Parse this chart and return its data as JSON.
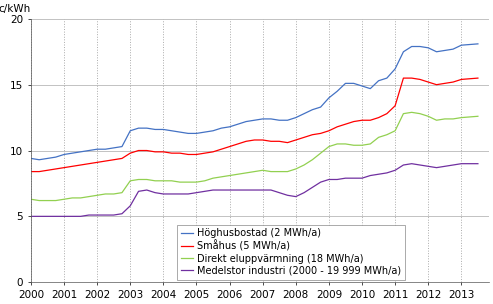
{
  "title": "",
  "ylabel": "c/kWh",
  "ylim": [
    0,
    20
  ],
  "yticks": [
    0,
    5,
    10,
    15,
    20
  ],
  "xlim": [
    2000,
    2013.83
  ],
  "xticks": [
    2000,
    2001,
    2002,
    2003,
    2004,
    2005,
    2006,
    2007,
    2008,
    2009,
    2010,
    2011,
    2012,
    2013
  ],
  "grid_color": "#aaaaaa",
  "background_color": "#ffffff",
  "series": {
    "Höghusbostad (2 MWh/a)": {
      "color": "#4472C4",
      "data": [
        [
          2000.0,
          9.4
        ],
        [
          2000.25,
          9.3
        ],
        [
          2000.5,
          9.4
        ],
        [
          2000.75,
          9.5
        ],
        [
          2001.0,
          9.7
        ],
        [
          2001.25,
          9.8
        ],
        [
          2001.5,
          9.9
        ],
        [
          2001.75,
          10.0
        ],
        [
          2002.0,
          10.1
        ],
        [
          2002.25,
          10.1
        ],
        [
          2002.5,
          10.2
        ],
        [
          2002.75,
          10.3
        ],
        [
          2003.0,
          11.5
        ],
        [
          2003.25,
          11.7
        ],
        [
          2003.5,
          11.7
        ],
        [
          2003.75,
          11.6
        ],
        [
          2004.0,
          11.6
        ],
        [
          2004.25,
          11.5
        ],
        [
          2004.5,
          11.4
        ],
        [
          2004.75,
          11.3
        ],
        [
          2005.0,
          11.3
        ],
        [
          2005.25,
          11.4
        ],
        [
          2005.5,
          11.5
        ],
        [
          2005.75,
          11.7
        ],
        [
          2006.0,
          11.8
        ],
        [
          2006.25,
          12.0
        ],
        [
          2006.5,
          12.2
        ],
        [
          2006.75,
          12.3
        ],
        [
          2007.0,
          12.4
        ],
        [
          2007.25,
          12.4
        ],
        [
          2007.5,
          12.3
        ],
        [
          2007.75,
          12.3
        ],
        [
          2008.0,
          12.5
        ],
        [
          2008.25,
          12.8
        ],
        [
          2008.5,
          13.1
        ],
        [
          2008.75,
          13.3
        ],
        [
          2009.0,
          14.0
        ],
        [
          2009.25,
          14.5
        ],
        [
          2009.5,
          15.1
        ],
        [
          2009.75,
          15.1
        ],
        [
          2010.0,
          14.9
        ],
        [
          2010.25,
          14.7
        ],
        [
          2010.5,
          15.3
        ],
        [
          2010.75,
          15.5
        ],
        [
          2011.0,
          16.2
        ],
        [
          2011.25,
          17.5
        ],
        [
          2011.5,
          17.9
        ],
        [
          2011.75,
          17.9
        ],
        [
          2012.0,
          17.8
        ],
        [
          2012.25,
          17.5
        ],
        [
          2012.5,
          17.6
        ],
        [
          2012.75,
          17.7
        ],
        [
          2013.0,
          18.0
        ],
        [
          2013.5,
          18.1
        ]
      ]
    },
    "Småhus (5 MWh/a)": {
      "color": "#FF0000",
      "data": [
        [
          2000.0,
          8.4
        ],
        [
          2000.25,
          8.4
        ],
        [
          2000.5,
          8.5
        ],
        [
          2000.75,
          8.6
        ],
        [
          2001.0,
          8.7
        ],
        [
          2001.25,
          8.8
        ],
        [
          2001.5,
          8.9
        ],
        [
          2001.75,
          9.0
        ],
        [
          2002.0,
          9.1
        ],
        [
          2002.25,
          9.2
        ],
        [
          2002.5,
          9.3
        ],
        [
          2002.75,
          9.4
        ],
        [
          2003.0,
          9.8
        ],
        [
          2003.25,
          10.0
        ],
        [
          2003.5,
          10.0
        ],
        [
          2003.75,
          9.9
        ],
        [
          2004.0,
          9.9
        ],
        [
          2004.25,
          9.8
        ],
        [
          2004.5,
          9.8
        ],
        [
          2004.75,
          9.7
        ],
        [
          2005.0,
          9.7
        ],
        [
          2005.25,
          9.8
        ],
        [
          2005.5,
          9.9
        ],
        [
          2005.75,
          10.1
        ],
        [
          2006.0,
          10.3
        ],
        [
          2006.25,
          10.5
        ],
        [
          2006.5,
          10.7
        ],
        [
          2006.75,
          10.8
        ],
        [
          2007.0,
          10.8
        ],
        [
          2007.25,
          10.7
        ],
        [
          2007.5,
          10.7
        ],
        [
          2007.75,
          10.6
        ],
        [
          2008.0,
          10.8
        ],
        [
          2008.25,
          11.0
        ],
        [
          2008.5,
          11.2
        ],
        [
          2008.75,
          11.3
        ],
        [
          2009.0,
          11.5
        ],
        [
          2009.25,
          11.8
        ],
        [
          2009.5,
          12.0
        ],
        [
          2009.75,
          12.2
        ],
        [
          2010.0,
          12.3
        ],
        [
          2010.25,
          12.3
        ],
        [
          2010.5,
          12.5
        ],
        [
          2010.75,
          12.8
        ],
        [
          2011.0,
          13.4
        ],
        [
          2011.25,
          15.5
        ],
        [
          2011.5,
          15.5
        ],
        [
          2011.75,
          15.4
        ],
        [
          2012.0,
          15.2
        ],
        [
          2012.25,
          15.0
        ],
        [
          2012.5,
          15.1
        ],
        [
          2012.75,
          15.2
        ],
        [
          2013.0,
          15.4
        ],
        [
          2013.5,
          15.5
        ]
      ]
    },
    "Direkt eluppvärmning (18 MWh/a)": {
      "color": "#92D050",
      "data": [
        [
          2000.0,
          6.3
        ],
        [
          2000.25,
          6.2
        ],
        [
          2000.5,
          6.2
        ],
        [
          2000.75,
          6.2
        ],
        [
          2001.0,
          6.3
        ],
        [
          2001.25,
          6.4
        ],
        [
          2001.5,
          6.4
        ],
        [
          2001.75,
          6.5
        ],
        [
          2002.0,
          6.6
        ],
        [
          2002.25,
          6.7
        ],
        [
          2002.5,
          6.7
        ],
        [
          2002.75,
          6.8
        ],
        [
          2003.0,
          7.7
        ],
        [
          2003.25,
          7.8
        ],
        [
          2003.5,
          7.8
        ],
        [
          2003.75,
          7.7
        ],
        [
          2004.0,
          7.7
        ],
        [
          2004.25,
          7.7
        ],
        [
          2004.5,
          7.6
        ],
        [
          2004.75,
          7.6
        ],
        [
          2005.0,
          7.6
        ],
        [
          2005.25,
          7.7
        ],
        [
          2005.5,
          7.9
        ],
        [
          2005.75,
          8.0
        ],
        [
          2006.0,
          8.1
        ],
        [
          2006.25,
          8.2
        ],
        [
          2006.5,
          8.3
        ],
        [
          2006.75,
          8.4
        ],
        [
          2007.0,
          8.5
        ],
        [
          2007.25,
          8.4
        ],
        [
          2007.5,
          8.4
        ],
        [
          2007.75,
          8.4
        ],
        [
          2008.0,
          8.6
        ],
        [
          2008.25,
          8.9
        ],
        [
          2008.5,
          9.3
        ],
        [
          2008.75,
          9.8
        ],
        [
          2009.0,
          10.3
        ],
        [
          2009.25,
          10.5
        ],
        [
          2009.5,
          10.5
        ],
        [
          2009.75,
          10.4
        ],
        [
          2010.0,
          10.4
        ],
        [
          2010.25,
          10.5
        ],
        [
          2010.5,
          11.0
        ],
        [
          2010.75,
          11.2
        ],
        [
          2011.0,
          11.5
        ],
        [
          2011.25,
          12.8
        ],
        [
          2011.5,
          12.9
        ],
        [
          2011.75,
          12.8
        ],
        [
          2012.0,
          12.6
        ],
        [
          2012.25,
          12.3
        ],
        [
          2012.5,
          12.4
        ],
        [
          2012.75,
          12.4
        ],
        [
          2013.0,
          12.5
        ],
        [
          2013.5,
          12.6
        ]
      ]
    },
    "Medelstor industri (2000 - 19 999 MWh/a)": {
      "color": "#7030A0",
      "data": [
        [
          2000.0,
          5.0
        ],
        [
          2000.25,
          5.0
        ],
        [
          2000.5,
          5.0
        ],
        [
          2000.75,
          5.0
        ],
        [
          2001.0,
          5.0
        ],
        [
          2001.25,
          5.0
        ],
        [
          2001.5,
          5.0
        ],
        [
          2001.75,
          5.1
        ],
        [
          2002.0,
          5.1
        ],
        [
          2002.25,
          5.1
        ],
        [
          2002.5,
          5.1
        ],
        [
          2002.75,
          5.2
        ],
        [
          2003.0,
          5.8
        ],
        [
          2003.25,
          6.9
        ],
        [
          2003.5,
          7.0
        ],
        [
          2003.75,
          6.8
        ],
        [
          2004.0,
          6.7
        ],
        [
          2004.25,
          6.7
        ],
        [
          2004.5,
          6.7
        ],
        [
          2004.75,
          6.7
        ],
        [
          2005.0,
          6.8
        ],
        [
          2005.25,
          6.9
        ],
        [
          2005.5,
          7.0
        ],
        [
          2005.75,
          7.0
        ],
        [
          2006.0,
          7.0
        ],
        [
          2006.25,
          7.0
        ],
        [
          2006.5,
          7.0
        ],
        [
          2006.75,
          7.0
        ],
        [
          2007.0,
          7.0
        ],
        [
          2007.25,
          7.0
        ],
        [
          2007.5,
          6.8
        ],
        [
          2007.75,
          6.6
        ],
        [
          2008.0,
          6.5
        ],
        [
          2008.25,
          6.8
        ],
        [
          2008.5,
          7.2
        ],
        [
          2008.75,
          7.6
        ],
        [
          2009.0,
          7.8
        ],
        [
          2009.25,
          7.8
        ],
        [
          2009.5,
          7.9
        ],
        [
          2009.75,
          7.9
        ],
        [
          2010.0,
          7.9
        ],
        [
          2010.25,
          8.1
        ],
        [
          2010.5,
          8.2
        ],
        [
          2010.75,
          8.3
        ],
        [
          2011.0,
          8.5
        ],
        [
          2011.25,
          8.9
        ],
        [
          2011.5,
          9.0
        ],
        [
          2011.75,
          8.9
        ],
        [
          2012.0,
          8.8
        ],
        [
          2012.25,
          8.7
        ],
        [
          2012.5,
          8.8
        ],
        [
          2012.75,
          8.9
        ],
        [
          2013.0,
          9.0
        ],
        [
          2013.5,
          9.0
        ]
      ]
    }
  },
  "fontsize": 7.5
}
